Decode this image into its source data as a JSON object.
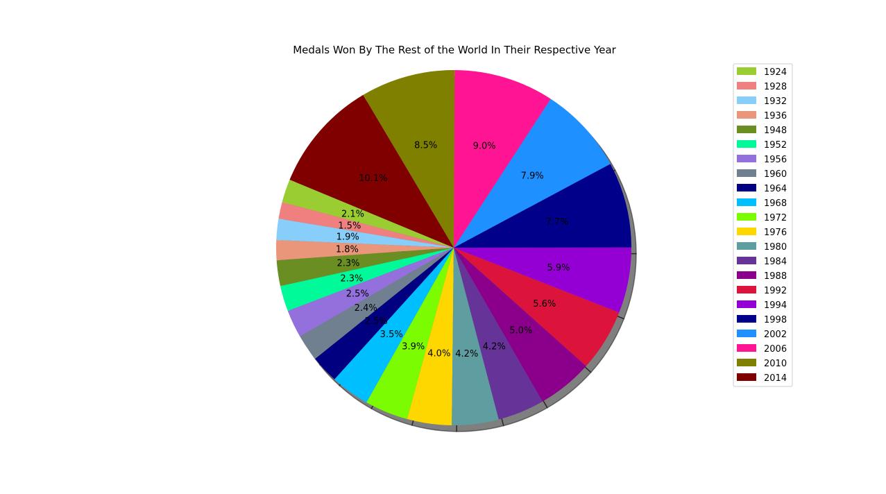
{
  "chart_data": {
    "type": "pie",
    "title": "Medals Won By The Rest of the World In Their Respective Year",
    "legend_position": "top-right",
    "shadow": true,
    "labels": [
      "1924",
      "1928",
      "1932",
      "1936",
      "1948",
      "1952",
      "1956",
      "1960",
      "1964",
      "1968",
      "1972",
      "1976",
      "1980",
      "1984",
      "1988",
      "1992",
      "1994",
      "1998",
      "2002",
      "2006",
      "2010",
      "2014"
    ],
    "values": [
      2.1,
      1.5,
      1.9,
      1.8,
      2.3,
      2.3,
      2.5,
      2.4,
      2.5,
      3.5,
      3.9,
      4.0,
      4.2,
      4.2,
      5.0,
      5.6,
      5.9,
      7.7,
      7.9,
      9.0,
      8.5,
      10.1
    ],
    "pct_labels": [
      "2.1%",
      "1.5%",
      "1.9%",
      "1.8%",
      "2.3%",
      "2.3%",
      "2.5%",
      "2.4%",
      "2.5%",
      "3.5%",
      "3.9%",
      "4.0%",
      "4.2%",
      "4.2%",
      "5.0%",
      "5.6%",
      "5.9%",
      "7.7%",
      "7.9%",
      "9.0%",
      "8.5%",
      "10.1%"
    ],
    "colors": [
      "#9acd32",
      "#f08080",
      "#87cefa",
      "#e9967a",
      "#6b8e23",
      "#00fa9a",
      "#9370db",
      "#708090",
      "#000080",
      "#00bfff",
      "#7cfc00",
      "#ffd700",
      "#5f9ea0",
      "#663399",
      "#8b008b",
      "#dc143c",
      "#9400d3",
      "#00008b",
      "#1e90ff",
      "#ff1493",
      "#808000",
      "#800000"
    ]
  }
}
